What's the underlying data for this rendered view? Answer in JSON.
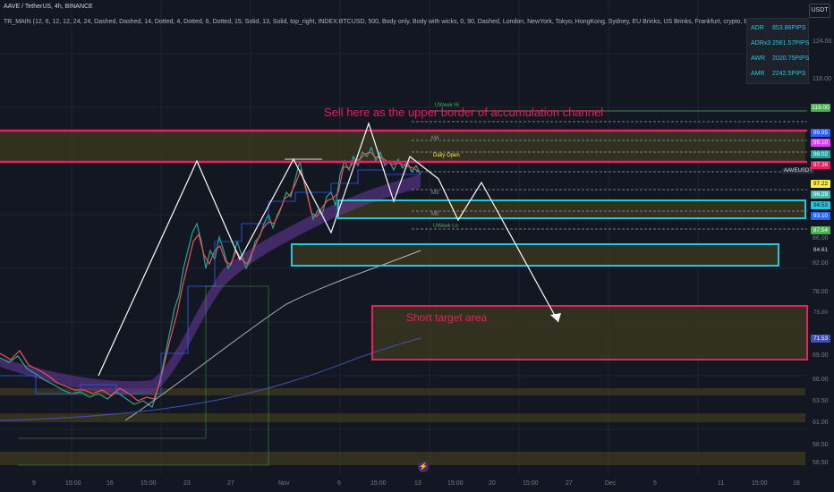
{
  "header": {
    "symbol_line": "AAVE / TetherUS, 4h, BINANCE",
    "indicator_line": "TR_MAIN (12, 6, 12, 12, 24, 24, Dashed, Dashed, 14, Dotted, 4, Dotted, 6, Dotted, 15, Solid, 13, Solid, top_right, INDEX:BTCUSD, 500, Body only, Body with wicks, 0, 90, Dashed, London, NewYork, Tokyo, HongKong, Sydney, EU Brinks, US Brinks, Frankfurt, crypto, bottom_center)"
  },
  "currency_button": "USDT",
  "stats_panel": [
    {
      "label": "ADR",
      "value": "853.86PIPS"
    },
    {
      "label": "ADRx3",
      "value": "2561.57PIPS"
    },
    {
      "label": "AWR",
      "value": "2020.75PIPS"
    },
    {
      "label": "AMR",
      "value": "2242.5PIPS"
    }
  ],
  "annotations": {
    "sell": "Sell here as the upper border of accumulation channel",
    "target": "Short  target area"
  },
  "chart_labels": {
    "uweek_hi": "UWeek Hi",
    "daily_open": "Daily Open",
    "uweek_lo": "UWeek Lo",
    "m4": "M4",
    "m3": "M3",
    "m0": "M0",
    "pair": "AAVEUSDT"
  },
  "colors": {
    "background": "#131722",
    "pink": "#e91e63",
    "cyan": "#26c6da",
    "white": "#e0e3eb",
    "zone": "#3d3a1e",
    "grid": "#1f2330"
  },
  "price_axis": [
    "124.00",
    "116.00",
    "86.00",
    "82.00",
    "78.00",
    "69.00",
    "66.00",
    "63.50",
    "61.00",
    "58.50",
    "56.50"
  ],
  "price_tags": [
    {
      "text": "119.00",
      "bg": "#4caf50",
      "fg": "#ffffff"
    },
    {
      "text": "99.95",
      "bg": "#2962ff",
      "fg": "#ffffff"
    },
    {
      "text": "99.10",
      "bg": "#e040fb",
      "fg": "#ffffff"
    },
    {
      "text": "98.02",
      "bg": "#26a69a",
      "fg": "#ffffff"
    },
    {
      "text": "97.36",
      "bg": "#e91e63",
      "fg": "#ffffff"
    },
    {
      "text": "97.22",
      "bg": "#ffeb3b",
      "fg": "#131722"
    },
    {
      "text": "96.28",
      "bg": "#4db6ac",
      "fg": "#ffffff"
    },
    {
      "text": "94.53",
      "bg": "#26c6da",
      "fg": "#131722"
    },
    {
      "text": "93.10",
      "bg": "#2962ff",
      "fg": "#ffffff"
    },
    {
      "text": "87.54",
      "bg": "#4caf50",
      "fg": "#ffffff"
    },
    {
      "text": "84.61",
      "bg": "#131722",
      "fg": "#d1d4dc"
    },
    {
      "text": "75.00",
      "bg": "#131722",
      "fg": "#787b86"
    },
    {
      "text": "71.53",
      "bg": "#3f51b5",
      "fg": "#ffffff"
    }
  ],
  "time_axis": [
    "9",
    "15:00",
    "16",
    "15:00",
    "23",
    "27",
    "Nov",
    "6",
    "15:00",
    "13",
    "15:00",
    "20",
    "15:00",
    "27",
    "Dec",
    "5",
    "11",
    "15:00",
    "18"
  ]
}
